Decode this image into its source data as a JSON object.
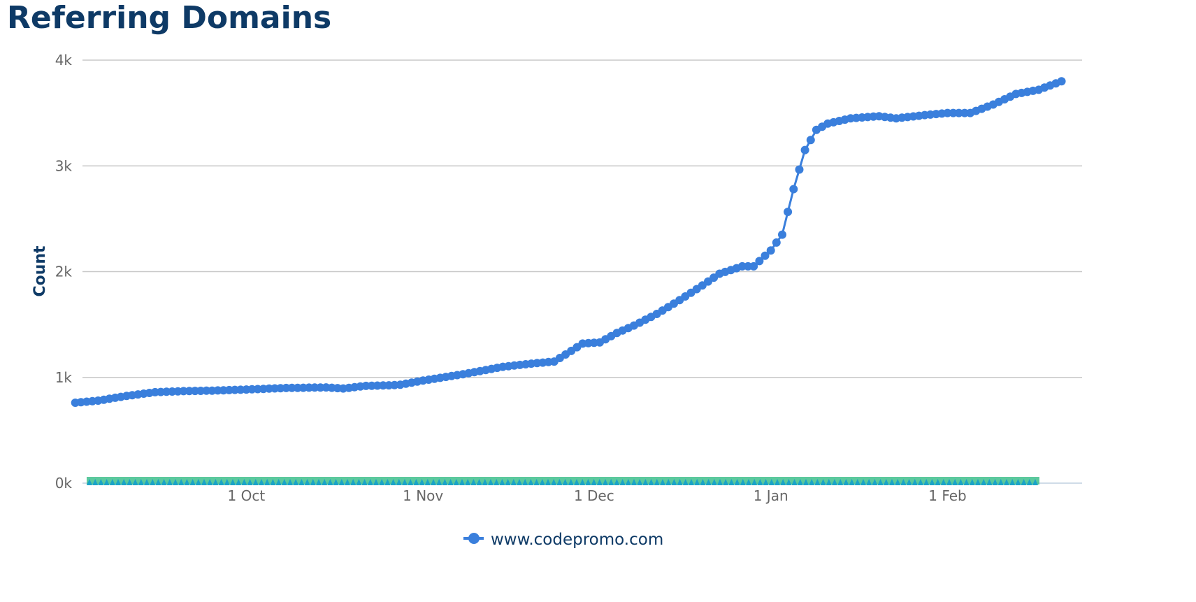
{
  "chart_data": {
    "type": "line",
    "title": "Referring Domains",
    "ylabel": "Count",
    "xlabel": "",
    "ylim": [
      0,
      4000
    ],
    "yticks": [
      0,
      1000,
      2000,
      3000,
      4000
    ],
    "ytick_labels": [
      "0k",
      "1k",
      "2k",
      "3k",
      "4k"
    ],
    "x_range": [
      "2024-09-03",
      "2025-02-17"
    ],
    "xticks": [
      "2024-10-01",
      "2024-11-01",
      "2024-12-01",
      "2025-01-01",
      "2025-02-01"
    ],
    "xtick_labels": [
      "1 Oct",
      "1 Nov",
      "1 Dec",
      "1 Jan",
      "1 Feb"
    ],
    "grid": "horizontal",
    "legend_position": "bottom",
    "colors": {
      "series": "#3a7fdc",
      "title": "#0e3a66",
      "grid": "#c8c8c8",
      "axis_text": "#666666"
    },
    "series": [
      {
        "name": "www.codepromo.com",
        "points": [
          [
            "2024-09-01",
            760
          ],
          [
            "2024-09-05",
            780
          ],
          [
            "2024-09-10",
            825
          ],
          [
            "2024-09-15",
            860
          ],
          [
            "2024-09-20",
            870
          ],
          [
            "2024-09-25",
            875
          ],
          [
            "2024-10-01",
            885
          ],
          [
            "2024-10-08",
            900
          ],
          [
            "2024-10-15",
            905
          ],
          [
            "2024-10-18",
            895
          ],
          [
            "2024-10-22",
            920
          ],
          [
            "2024-10-26",
            925
          ],
          [
            "2024-10-28",
            930
          ],
          [
            "2024-11-01",
            970
          ],
          [
            "2024-11-08",
            1030
          ],
          [
            "2024-11-15",
            1100
          ],
          [
            "2024-11-20",
            1130
          ],
          [
            "2024-11-24",
            1150
          ],
          [
            "2024-11-27",
            1250
          ],
          [
            "2024-11-29",
            1320
          ],
          [
            "2024-12-02",
            1330
          ],
          [
            "2024-12-05",
            1420
          ],
          [
            "2024-12-08",
            1490
          ],
          [
            "2024-12-12",
            1600
          ],
          [
            "2024-12-16",
            1730
          ],
          [
            "2024-12-20",
            1870
          ],
          [
            "2024-12-23",
            1980
          ],
          [
            "2024-12-27",
            2050
          ],
          [
            "2024-12-29",
            2050
          ],
          [
            "2025-01-01",
            2200
          ],
          [
            "2025-01-03",
            2350
          ],
          [
            "2025-01-05",
            2780
          ],
          [
            "2025-01-07",
            3150
          ],
          [
            "2025-01-09",
            3340
          ],
          [
            "2025-01-11",
            3400
          ],
          [
            "2025-01-15",
            3450
          ],
          [
            "2025-01-20",
            3470
          ],
          [
            "2025-01-23",
            3450
          ],
          [
            "2025-01-28",
            3480
          ],
          [
            "2025-02-01",
            3500
          ],
          [
            "2025-02-05",
            3500
          ],
          [
            "2025-02-09",
            3580
          ],
          [
            "2025-02-13",
            3680
          ],
          [
            "2025-02-17",
            3720
          ],
          [
            "2025-02-21",
            3800
          ]
        ]
      }
    ]
  }
}
